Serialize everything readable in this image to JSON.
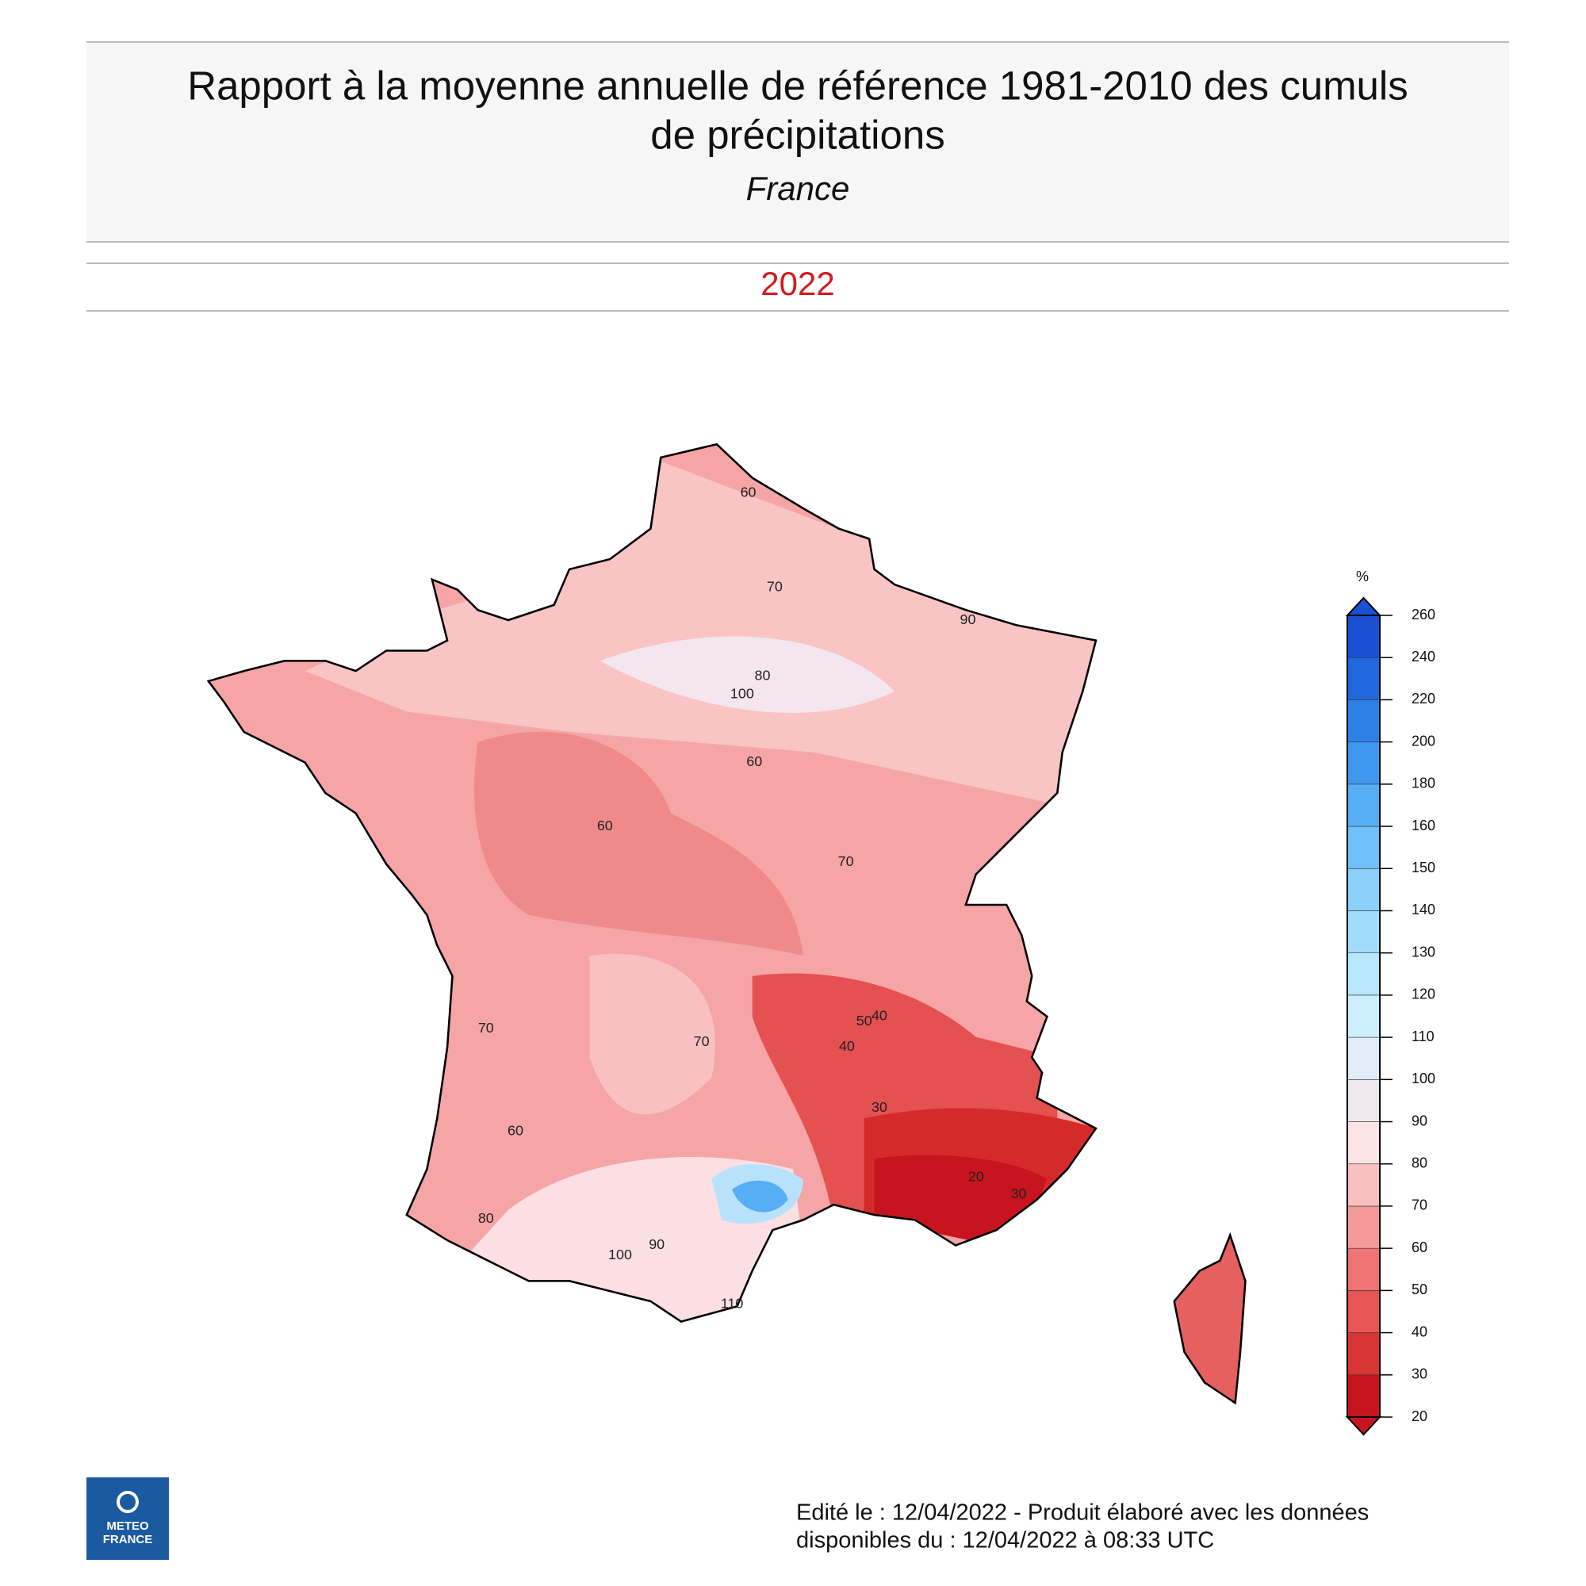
{
  "header": {
    "title_line1": "Rapport à la moyenne annuelle de référence 1981-2010 des cumuls",
    "title_line2": "de précipitations",
    "subtitle": "France",
    "year": "2022"
  },
  "legend": {
    "unit": "%",
    "ticks": [
      20,
      30,
      40,
      50,
      60,
      70,
      80,
      90,
      100,
      110,
      120,
      130,
      140,
      150,
      160,
      180,
      200,
      220,
      240,
      260
    ],
    "colors": [
      "#c8141e",
      "#d93535",
      "#e85555",
      "#ef7474",
      "#f59a9a",
      "#f8c0c0",
      "#fbe3e3",
      "#eee8ee",
      "#e0ecf8",
      "#cdeefd",
      "#b8e6fd",
      "#a2dcfc",
      "#8ad0fb",
      "#6fc0f8",
      "#56aef4",
      "#3e98ee",
      "#2d80e6",
      "#2168de",
      "#1a50d4"
    ]
  },
  "contour_labels": [
    60,
    70,
    90,
    80,
    100,
    60,
    60,
    70,
    50,
    40,
    40,
    30,
    20,
    30,
    70,
    60,
    80,
    90,
    100,
    110,
    70
  ],
  "logo": {
    "line1": "METEO",
    "line2": "FRANCE"
  },
  "footer": {
    "line1": "Edité le : 12/04/2022 - Produit élaboré avec les données",
    "line2": "disponibles du : 12/04/2022 à 08:33 UTC"
  }
}
